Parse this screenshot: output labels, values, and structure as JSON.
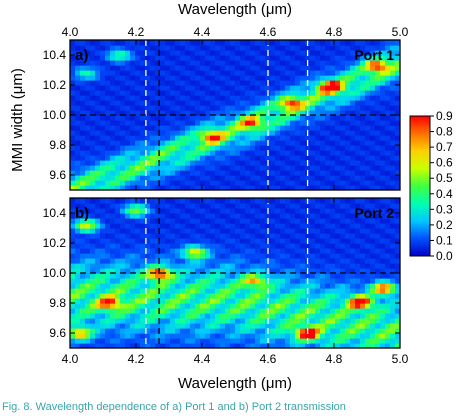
{
  "chart_data": {
    "type": "heatmap",
    "x_axis": {
      "label": "Wavelength (μm)",
      "range": [
        4.0,
        5.0
      ],
      "ticks": [
        "4.0",
        "4.2",
        "4.4",
        "4.6",
        "4.8",
        "5.0"
      ]
    },
    "y_axis": {
      "label": "MMI width (μm)",
      "range": [
        9.5,
        10.5
      ],
      "ticks": [
        "9.6",
        "9.8",
        "10.0",
        "10.2",
        "10.4"
      ]
    },
    "colorbar": {
      "range": [
        0.0,
        0.9
      ],
      "ticks": [
        "0.0",
        "0.1",
        "0.2",
        "0.3",
        "0.4",
        "0.5",
        "0.6",
        "0.7",
        "0.8",
        "0.9"
      ],
      "colors": [
        "#0000c8",
        "#0050ff",
        "#00c8ff",
        "#00ffb0",
        "#40ff40",
        "#c8ff00",
        "#ffd000",
        "#ff7000",
        "#ff0000"
      ]
    },
    "vertical_dashed_wavelengths_um": [
      4.23,
      4.27,
      4.6,
      4.72
    ],
    "horizontal_dashed_width_um": 10.0,
    "panels": [
      {
        "panel_label": "a)",
        "title": "Port 1",
        "band": [
          {
            "x": 4.0,
            "y": 9.5
          },
          {
            "x": 4.5,
            "y": 9.9
          },
          {
            "x": 5.0,
            "y": 10.35
          }
        ],
        "band_halfwidth_um": 0.11,
        "hotspots": [
          {
            "x": 4.79,
            "y": 10.19,
            "value": 0.8
          },
          {
            "x": 4.93,
            "y": 10.33,
            "value": 0.65
          },
          {
            "x": 4.67,
            "y": 10.08,
            "value": 0.6
          },
          {
            "x": 4.43,
            "y": 9.86,
            "value": 0.55
          },
          {
            "x": 4.55,
            "y": 9.95,
            "value": 0.5
          },
          {
            "x": 4.15,
            "y": 10.4,
            "value": 0.32
          },
          {
            "x": 4.05,
            "y": 10.28,
            "value": 0.28
          }
        ]
      },
      {
        "panel_label": "b)",
        "title": "Port 2",
        "band": [
          {
            "x": 4.0,
            "y": 9.85
          },
          {
            "x": 4.5,
            "y": 9.82
          },
          {
            "x": 5.0,
            "y": 9.6
          }
        ],
        "band_halfwidth_um": 0.22,
        "hotspots": [
          {
            "x": 4.27,
            "y": 10.0,
            "value": 0.75
          },
          {
            "x": 4.88,
            "y": 9.81,
            "value": 0.85
          },
          {
            "x": 4.95,
            "y": 9.9,
            "value": 0.75
          },
          {
            "x": 4.72,
            "y": 9.6,
            "value": 0.8
          },
          {
            "x": 4.12,
            "y": 9.8,
            "value": 0.6
          },
          {
            "x": 4.05,
            "y": 10.32,
            "value": 0.55
          },
          {
            "x": 4.38,
            "y": 10.14,
            "value": 0.55
          },
          {
            "x": 4.56,
            "y": 9.95,
            "value": 0.5
          },
          {
            "x": 4.03,
            "y": 9.6,
            "value": 0.6
          },
          {
            "x": 4.2,
            "y": 10.42,
            "value": 0.45
          }
        ]
      }
    ]
  },
  "caption": {
    "prefix": "Fig. 8.",
    "text_1": "Wavelength dependence of",
    "ref_a": "a)",
    "text_2": "Port 1 and",
    "ref_b": "b)",
    "text_3": "Port 2 transmission"
  }
}
